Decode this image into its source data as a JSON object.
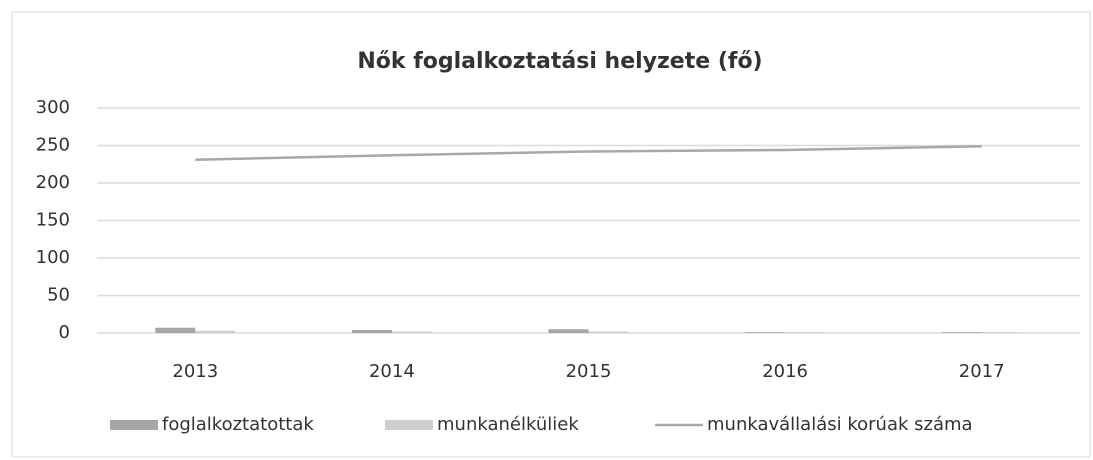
{
  "chart_data": {
    "type": "bar",
    "title": "Nők foglalkoztatási helyzete (fő)",
    "categories": [
      "2013",
      "2014",
      "2015",
      "2016",
      "2017"
    ],
    "series": [
      {
        "name": "foglalkoztatottak",
        "type": "bar",
        "color": "#a6a6a6",
        "values": [
          7,
          4,
          5,
          1,
          1
        ]
      },
      {
        "name": "munkanélküliek",
        "type": "bar",
        "color": "#cfcfcf",
        "values": [
          3,
          2,
          2,
          1,
          1
        ]
      },
      {
        "name": "munkavállalási korúak száma",
        "type": "line",
        "color": "#a8a8a8",
        "values": [
          231,
          237,
          242,
          244,
          249
        ]
      }
    ],
    "ylim": [
      0,
      300
    ],
    "yticks": [
      0,
      50,
      100,
      150,
      200,
      250,
      300
    ],
    "grid": true,
    "legend": "bottom"
  }
}
